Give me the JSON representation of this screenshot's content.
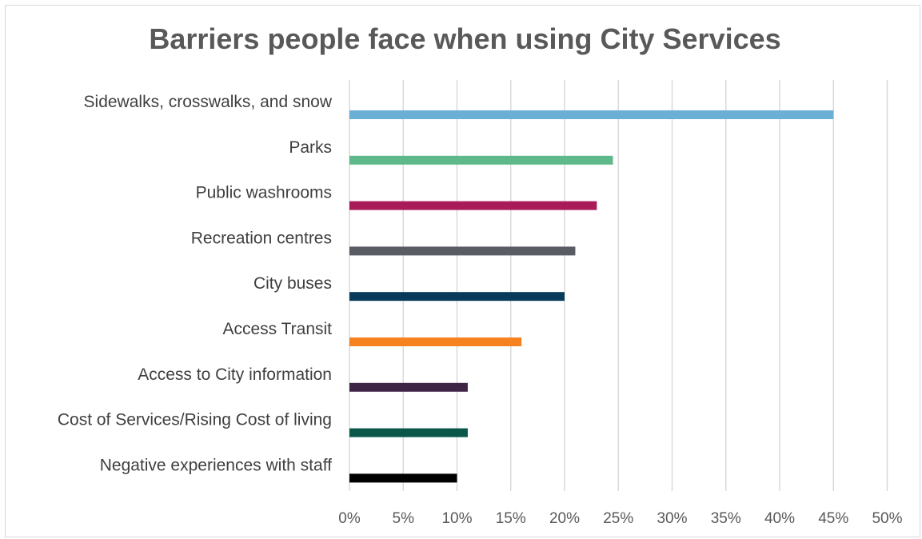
{
  "chart_data": {
    "type": "bar",
    "orientation": "horizontal",
    "title": "Barriers people face when using City Services",
    "xlabel": "",
    "ylabel": "",
    "xlim": [
      0,
      50
    ],
    "tick_step": 5,
    "tick_suffix": "%",
    "grid": "vertical",
    "categories": [
      "Sidewalks, crosswalks, and snow",
      "Parks",
      "Public washrooms",
      "Recreation centres",
      "City buses",
      "Access Transit",
      "Access to City information",
      "Cost of Services/Rising Cost of living",
      "Negative experiences with staff"
    ],
    "values": [
      45,
      24.5,
      23,
      21,
      20,
      16,
      11,
      11,
      10
    ],
    "colors": [
      "#6baed6",
      "#5fb88a",
      "#a91b58",
      "#595c63",
      "#083a5c",
      "#f5821f",
      "#3f2545",
      "#0a5749",
      "#000000"
    ]
  }
}
